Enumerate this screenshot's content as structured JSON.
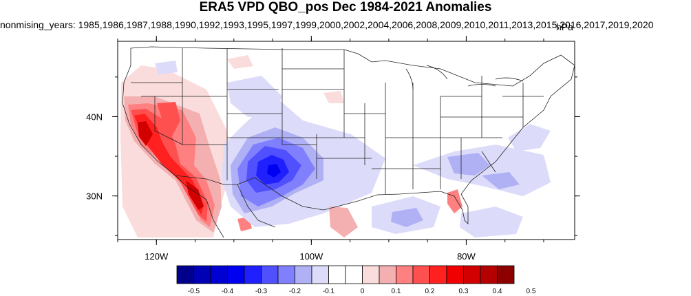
{
  "title": "ERA5 VPD QBO_pos Dec 1984-2021 Anomalies",
  "subtitle": "nonmising_years: 1985,1986,1987,1988,1990,1992,1993,1995,1997,1999,2000,2002,2004,2006,2008,2009,2010,2011,2013,2015,2016,2017,2019,2020",
  "unit": "hPa",
  "map": {
    "lat_labels": [
      {
        "value": 40,
        "text": "40N"
      },
      {
        "value": 30,
        "text": "30N"
      }
    ],
    "lon_labels": [
      {
        "value": -120,
        "text": "120W"
      },
      {
        "value": -100,
        "text": "100W"
      },
      {
        "value": -80,
        "text": "80W"
      }
    ],
    "lon_range": [
      -125,
      -66
    ],
    "lat_range": [
      24.5,
      49.5
    ]
  },
  "colorbar": {
    "colors": [
      "#00008c",
      "#0000b4",
      "#0000d2",
      "#0000f0",
      "#2020ff",
      "#5050ff",
      "#8080ff",
      "#b0b0f4",
      "#dcdcfa",
      "#ffffff",
      "#ffffff",
      "#fadcdc",
      "#f4b0b0",
      "#ff8080",
      "#ff5050",
      "#ff2020",
      "#f00000",
      "#d20000",
      "#b40000",
      "#8c0000"
    ],
    "tick_labels": [
      "-0.5",
      "-0.4",
      "-0.3",
      "-0.2",
      "-0.1",
      "0",
      "0.1",
      "0.2",
      "0.3",
      "0.4",
      "0.5"
    ]
  }
}
